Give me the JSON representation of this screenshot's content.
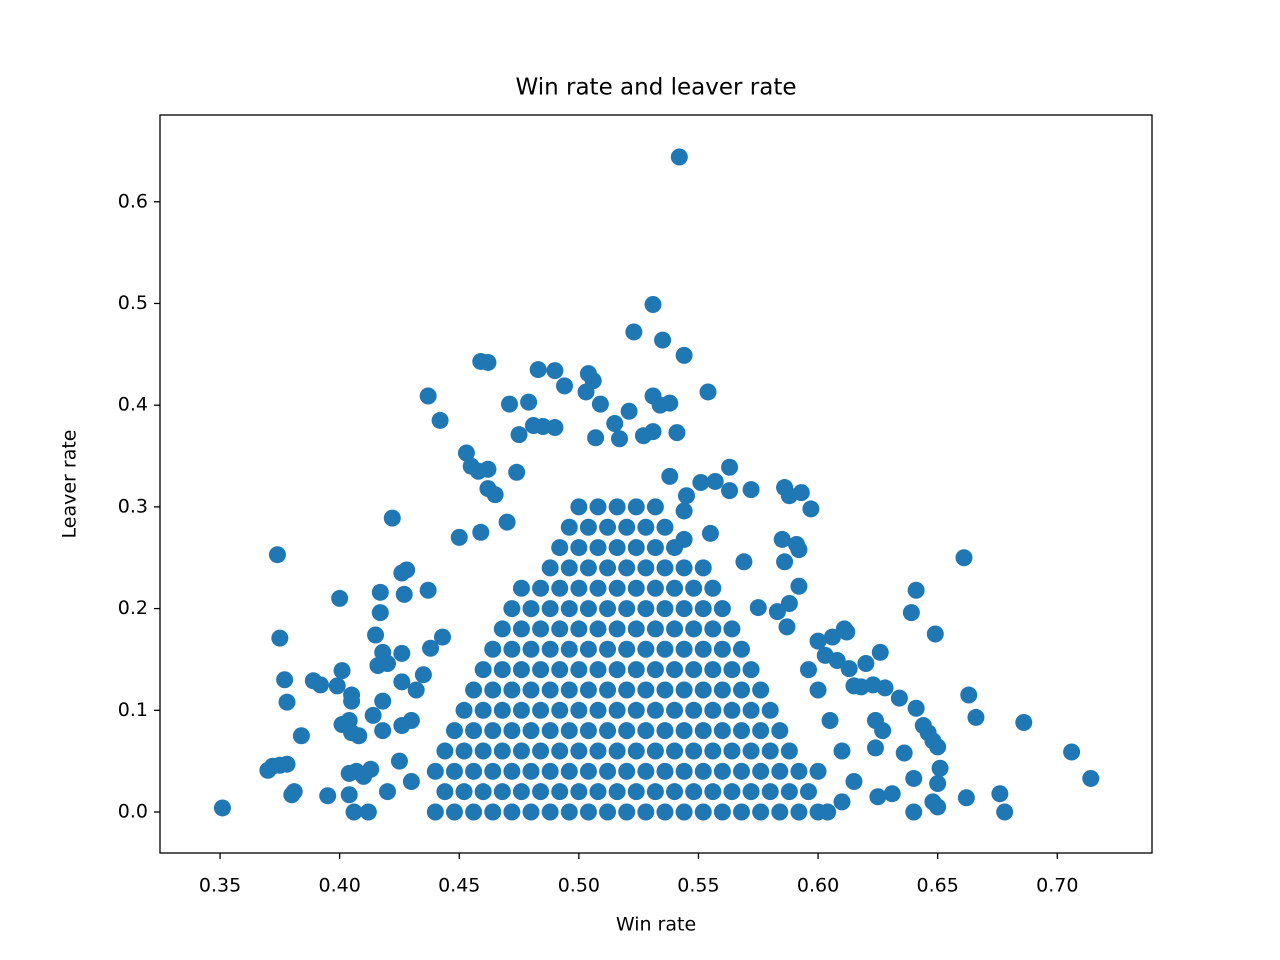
{
  "chart_data": {
    "type": "scatter",
    "title": "Win rate and leaver rate",
    "xlabel": "Win rate",
    "ylabel": "Leaver rate",
    "color": "#1f77b4",
    "xlim": [
      0.3249,
      0.7396
    ],
    "ylim": [
      -0.0403,
      0.6853
    ],
    "xticks": [
      {
        "value": 0.35,
        "label": "0.35"
      },
      {
        "value": 0.4,
        "label": "0.40"
      },
      0.45,
      {
        "value": 0.5,
        "label": "0.50"
      },
      0.55,
      {
        "value": 0.6,
        "label": "0.60"
      },
      0.65,
      {
        "value": 0.7,
        "label": "0.70"
      }
    ],
    "yticks": [
      {
        "value": 0,
        "label": "0.0"
      },
      0.1,
      0.2,
      0.3,
      0.4,
      0.5,
      0.6
    ],
    "grid": false,
    "x": [
      0.542,
      0.531,
      0.523,
      0.535,
      0.544,
      0.459,
      0.462,
      0.483,
      0.49,
      0.504,
      0.506,
      0.494,
      0.503,
      0.554,
      0.531,
      0.437,
      0.471,
      0.479,
      0.509,
      0.534,
      0.538,
      0.442,
      0.521,
      0.541,
      0.485,
      0.49,
      0.475,
      0.481,
      0.515,
      0.531,
      0.527,
      0.507,
      0.517,
      0.453,
      0.462,
      0.455,
      0.458,
      0.474,
      0.462,
      0.465,
      0.563,
      0.557,
      0.551,
      0.563,
      0.572,
      0.586,
      0.593,
      0.588,
      0.597,
      0.545,
      0.538,
      0.544,
      0.555,
      0.544,
      0.585,
      0.591,
      0.592,
      0.569,
      0.586,
      0.592,
      0.588,
      0.583,
      0.575,
      0.587,
      0.422,
      0.45,
      0.459,
      0.47,
      0.374,
      0.661,
      0.641,
      0.639,
      0.649,
      0.4,
      0.417,
      0.426,
      0.428,
      0.427,
      0.437,
      0.417,
      0.375,
      0.415,
      0.418,
      0.416,
      0.42,
      0.426,
      0.438,
      0.443,
      0.377,
      0.389,
      0.392,
      0.399,
      0.378,
      0.401,
      0.405,
      0.405,
      0.401,
      0.404,
      0.408,
      0.405,
      0.384,
      0.414,
      0.418,
      0.426,
      0.432,
      0.435,
      0.426,
      0.43,
      0.418,
      0.372,
      0.37,
      0.375,
      0.378,
      0.38,
      0.381,
      0.395,
      0.404,
      0.404,
      0.407,
      0.41,
      0.413,
      0.406,
      0.412,
      0.351,
      0.42,
      0.425,
      0.43,
      0.606,
      0.6,
      0.611,
      0.612,
      0.603,
      0.608,
      0.613,
      0.62,
      0.626,
      0.615,
      0.618,
      0.623,
      0.628,
      0.634,
      0.641,
      0.644,
      0.646,
      0.648,
      0.65,
      0.663,
      0.666,
      0.686,
      0.706,
      0.714,
      0.676,
      0.678,
      0.662,
      0.651,
      0.65,
      0.648,
      0.65,
      0.64,
      0.64,
      0.636,
      0.624,
      0.627,
      0.624,
      0.631,
      0.625,
      0.615,
      0.61,
      0.605,
      0.6,
      0.596,
      0.61,
      0.604,
      0.44,
      0.448,
      0.456,
      0.464,
      0.472,
      0.48,
      0.488,
      0.496,
      0.504,
      0.512,
      0.52,
      0.528,
      0.536,
      0.544,
      0.552,
      0.56,
      0.568,
      0.576,
      0.584,
      0.592,
      0.6,
      0.444,
      0.452,
      0.46,
      0.468,
      0.476,
      0.484,
      0.492,
      0.5,
      0.508,
      0.516,
      0.524,
      0.532,
      0.54,
      0.548,
      0.556,
      0.564,
      0.572,
      0.58,
      0.588,
      0.596,
      0.44,
      0.448,
      0.456,
      0.464,
      0.472,
      0.48,
      0.488,
      0.496,
      0.504,
      0.512,
      0.52,
      0.528,
      0.536,
      0.544,
      0.552,
      0.56,
      0.568,
      0.576,
      0.584,
      0.592,
      0.6,
      0.444,
      0.452,
      0.46,
      0.468,
      0.476,
      0.484,
      0.492,
      0.5,
      0.508,
      0.516,
      0.524,
      0.532,
      0.54,
      0.548,
      0.556,
      0.564,
      0.572,
      0.58,
      0.588,
      0.448,
      0.456,
      0.464,
      0.472,
      0.48,
      0.488,
      0.496,
      0.504,
      0.512,
      0.52,
      0.528,
      0.536,
      0.544,
      0.552,
      0.56,
      0.568,
      0.576,
      0.584,
      0.452,
      0.46,
      0.468,
      0.476,
      0.484,
      0.492,
      0.5,
      0.508,
      0.516,
      0.524,
      0.532,
      0.54,
      0.548,
      0.556,
      0.564,
      0.572,
      0.58,
      0.456,
      0.464,
      0.472,
      0.48,
      0.488,
      0.496,
      0.504,
      0.512,
      0.52,
      0.528,
      0.536,
      0.544,
      0.552,
      0.56,
      0.568,
      0.576,
      0.46,
      0.468,
      0.476,
      0.484,
      0.492,
      0.5,
      0.508,
      0.516,
      0.524,
      0.532,
      0.54,
      0.548,
      0.556,
      0.564,
      0.572,
      0.464,
      0.472,
      0.48,
      0.488,
      0.496,
      0.504,
      0.512,
      0.52,
      0.528,
      0.536,
      0.544,
      0.552,
      0.56,
      0.568,
      0.468,
      0.476,
      0.484,
      0.492,
      0.5,
      0.508,
      0.516,
      0.524,
      0.532,
      0.54,
      0.548,
      0.556,
      0.564,
      0.472,
      0.48,
      0.488,
      0.496,
      0.504,
      0.512,
      0.52,
      0.528,
      0.536,
      0.544,
      0.552,
      0.56,
      0.476,
      0.484,
      0.492,
      0.5,
      0.508,
      0.516,
      0.524,
      0.532,
      0.54,
      0.548,
      0.556,
      0.488,
      0.496,
      0.504,
      0.512,
      0.52,
      0.528,
      0.536,
      0.544,
      0.552,
      0.492,
      0.5,
      0.508,
      0.516,
      0.524,
      0.532,
      0.54,
      0.496,
      0.504,
      0.512,
      0.52,
      0.528,
      0.536,
      0.5,
      0.508,
      0.516,
      0.524,
      0.532
    ],
    "values": [
      0.644,
      0.499,
      0.472,
      0.464,
      0.449,
      0.443,
      0.442,
      0.435,
      0.434,
      0.431,
      0.424,
      0.419,
      0.413,
      0.413,
      0.409,
      0.409,
      0.401,
      0.403,
      0.401,
      0.4,
      0.402,
      0.385,
      0.394,
      0.373,
      0.379,
      0.378,
      0.371,
      0.38,
      0.382,
      0.374,
      0.37,
      0.368,
      0.367,
      0.353,
      0.337,
      0.34,
      0.335,
      0.334,
      0.318,
      0.312,
      0.339,
      0.325,
      0.324,
      0.316,
      0.317,
      0.319,
      0.314,
      0.311,
      0.298,
      0.311,
      0.33,
      0.296,
      0.274,
      0.268,
      0.268,
      0.263,
      0.258,
      0.246,
      0.246,
      0.222,
      0.205,
      0.197,
      0.201,
      0.182,
      0.289,
      0.27,
      0.275,
      0.285,
      0.253,
      0.25,
      0.218,
      0.196,
      0.175,
      0.21,
      0.216,
      0.235,
      0.238,
      0.214,
      0.218,
      0.196,
      0.171,
      0.174,
      0.157,
      0.144,
      0.146,
      0.156,
      0.161,
      0.172,
      0.13,
      0.129,
      0.125,
      0.124,
      0.108,
      0.139,
      0.115,
      0.109,
      0.086,
      0.09,
      0.075,
      0.078,
      0.075,
      0.095,
      0.109,
      0.128,
      0.12,
      0.135,
      0.085,
      0.09,
      0.08,
      0.045,
      0.041,
      0.046,
      0.047,
      0.017,
      0.02,
      0.016,
      0.017,
      0.038,
      0.04,
      0.035,
      0.042,
      0,
      0,
      0.004,
      0.02,
      0.05,
      0.03,
      0.172,
      0.168,
      0.18,
      0.177,
      0.154,
      0.149,
      0.141,
      0.146,
      0.157,
      0.124,
      0.123,
      0.125,
      0.122,
      0.112,
      0.102,
      0.085,
      0.078,
      0.07,
      0.064,
      0.115,
      0.093,
      0.088,
      0.059,
      0.033,
      0.018,
      0,
      0.014,
      0.043,
      0.028,
      0.01,
      0.005,
      0,
      0.033,
      0.058,
      0.09,
      0.08,
      0.063,
      0.018,
      0.015,
      0.03,
      0.06,
      0.09,
      0.12,
      0.14,
      0.01,
      0,
      0,
      0,
      0,
      0,
      0,
      0,
      0,
      0,
      0,
      0,
      0,
      0,
      0,
      0,
      0,
      0,
      0,
      0,
      0,
      0,
      0,
      0.02,
      0.02,
      0.02,
      0.02,
      0.02,
      0.02,
      0.02,
      0.02,
      0.02,
      0.02,
      0.02,
      0.02,
      0.02,
      0.02,
      0.02,
      0.02,
      0.02,
      0.02,
      0.02,
      0.02,
      0.04,
      0.04,
      0.04,
      0.04,
      0.04,
      0.04,
      0.04,
      0.04,
      0.04,
      0.04,
      0.04,
      0.04,
      0.04,
      0.04,
      0.04,
      0.04,
      0.04,
      0.04,
      0.04,
      0.04,
      0.04,
      0.06,
      0.06,
      0.06,
      0.06,
      0.06,
      0.06,
      0.06,
      0.06,
      0.06,
      0.06,
      0.06,
      0.06,
      0.06,
      0.06,
      0.06,
      0.06,
      0.06,
      0.06,
      0.06,
      0.08,
      0.08,
      0.08,
      0.08,
      0.08,
      0.08,
      0.08,
      0.08,
      0.08,
      0.08,
      0.08,
      0.08,
      0.08,
      0.08,
      0.08,
      0.08,
      0.08,
      0.08,
      0.1,
      0.1,
      0.1,
      0.1,
      0.1,
      0.1,
      0.1,
      0.1,
      0.1,
      0.1,
      0.1,
      0.1,
      0.1,
      0.1,
      0.1,
      0.1,
      0.1,
      0.12,
      0.12,
      0.12,
      0.12,
      0.12,
      0.12,
      0.12,
      0.12,
      0.12,
      0.12,
      0.12,
      0.12,
      0.12,
      0.12,
      0.12,
      0.12,
      0.14,
      0.14,
      0.14,
      0.14,
      0.14,
      0.14,
      0.14,
      0.14,
      0.14,
      0.14,
      0.14,
      0.14,
      0.14,
      0.14,
      0.14,
      0.16,
      0.16,
      0.16,
      0.16,
      0.16,
      0.16,
      0.16,
      0.16,
      0.16,
      0.16,
      0.16,
      0.16,
      0.16,
      0.16,
      0.18,
      0.18,
      0.18,
      0.18,
      0.18,
      0.18,
      0.18,
      0.18,
      0.18,
      0.18,
      0.18,
      0.18,
      0.18,
      0.2,
      0.2,
      0.2,
      0.2,
      0.2,
      0.2,
      0.2,
      0.2,
      0.2,
      0.2,
      0.2,
      0.2,
      0.22,
      0.22,
      0.22,
      0.22,
      0.22,
      0.22,
      0.22,
      0.22,
      0.22,
      0.22,
      0.22,
      0.24,
      0.24,
      0.24,
      0.24,
      0.24,
      0.24,
      0.24,
      0.24,
      0.24,
      0.26,
      0.26,
      0.26,
      0.26,
      0.26,
      0.26,
      0.26,
      0.28,
      0.28,
      0.28,
      0.28,
      0.28,
      0.28,
      0.3,
      0.3,
      0.3,
      0.3,
      0.3
    ]
  }
}
